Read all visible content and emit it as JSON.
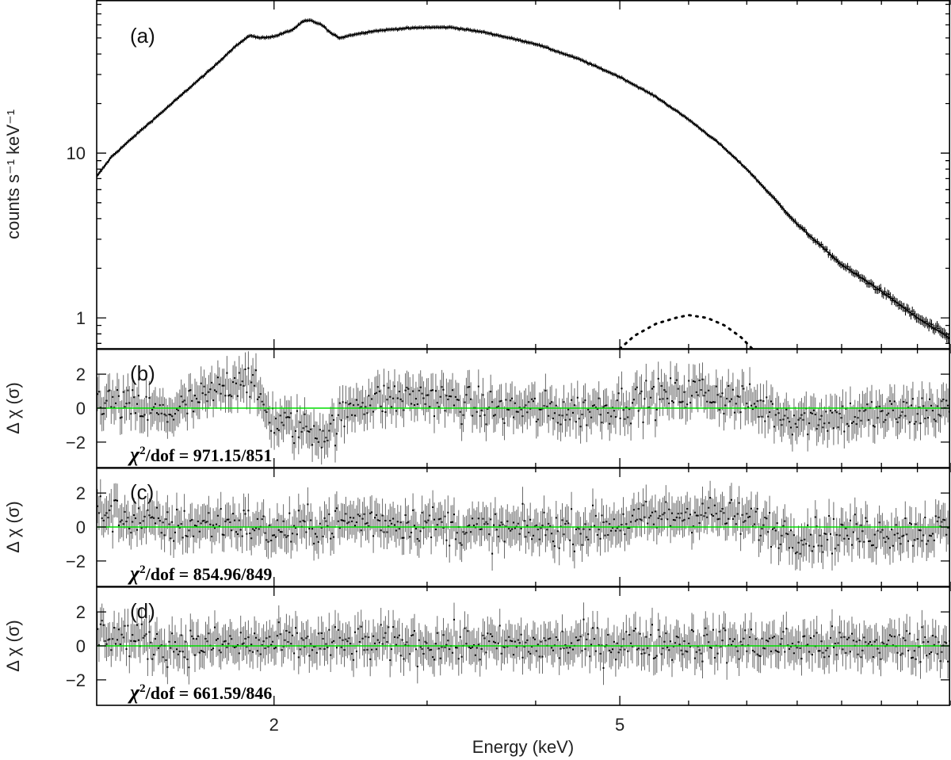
{
  "chart_data": {
    "type": "scatter",
    "x_axis": {
      "label": "Energy (keV)",
      "scale": "log",
      "range": [
        1.25,
        12.0
      ],
      "major_ticks": [
        2,
        5
      ],
      "tick_labels": [
        "2",
        "5"
      ]
    },
    "panels": [
      {
        "id": "a",
        "panel_label": "(a)",
        "ylabel": "counts s⁻¹ keV⁻¹",
        "yscale": "log",
        "ylim": [
          0.65,
          85
        ],
        "major_yticks": [
          1,
          10
        ],
        "ytick_labels": [
          "1",
          "10"
        ],
        "series": [
          {
            "kind": "spectrum",
            "marker": "crosses",
            "color": "#000000",
            "points": [
              [
                1.25,
                7.2
              ],
              [
                1.3,
                9.5
              ],
              [
                1.4,
                13.5
              ],
              [
                1.5,
                18.5
              ],
              [
                1.6,
                25
              ],
              [
                1.7,
                33
              ],
              [
                1.8,
                44
              ],
              [
                1.85,
                49
              ],
              [
                1.88,
                52
              ],
              [
                1.92,
                50
              ],
              [
                2.0,
                51
              ],
              [
                2.1,
                56
              ],
              [
                2.16,
                63
              ],
              [
                2.2,
                64
              ],
              [
                2.27,
                60
              ],
              [
                2.33,
                53
              ],
              [
                2.38,
                50
              ],
              [
                2.45,
                52
              ],
              [
                2.6,
                55
              ],
              [
                2.8,
                57
              ],
              [
                3.0,
                58
              ],
              [
                3.2,
                58
              ],
              [
                3.5,
                54
              ],
              [
                4.0,
                46
              ],
              [
                4.5,
                37
              ],
              [
                5.0,
                29
              ],
              [
                5.5,
                22
              ],
              [
                6.0,
                16
              ],
              [
                6.5,
                11.5
              ],
              [
                7.0,
                8
              ],
              [
                7.5,
                5.4
              ],
              [
                8.0,
                3.7
              ],
              [
                9.0,
                2.1
              ],
              [
                10.0,
                1.45
              ],
              [
                11.0,
                1.0
              ],
              [
                12.0,
                0.75
              ]
            ]
          },
          {
            "kind": "model-component",
            "style": "dotted",
            "color": "#000000",
            "points": [
              [
                5.0,
                0.65
              ],
              [
                5.2,
                0.78
              ],
              [
                5.5,
                0.92
              ],
              [
                5.8,
                1.0
              ],
              [
                6.0,
                1.04
              ],
              [
                6.3,
                1.0
              ],
              [
                6.6,
                0.9
              ],
              [
                6.9,
                0.76
              ],
              [
                7.1,
                0.65
              ]
            ]
          }
        ]
      },
      {
        "id": "b",
        "panel_label": "(b)",
        "ylabel": "Δ χ (σ)",
        "ylim": [
          -3.5,
          3.5
        ],
        "major_yticks": [
          -2,
          0,
          2
        ],
        "ytick_labels": [
          "−2",
          "0",
          "2"
        ],
        "zero_line_color": "#00dd00",
        "stat_prefix": "χ",
        "stat_sup": "2",
        "stat_text": "/dof = 971.15/851",
        "residual_trend": [
          [
            1.25,
            0.5
          ],
          [
            1.5,
            -0.4
          ],
          [
            1.7,
            0.8
          ],
          [
            1.85,
            2.0
          ],
          [
            2.0,
            -0.8
          ],
          [
            2.3,
            -1.5
          ],
          [
            2.5,
            0.4
          ],
          [
            3.0,
            0.7
          ],
          [
            3.5,
            0.0
          ],
          [
            4.5,
            -0.2
          ],
          [
            5.5,
            0.6
          ],
          [
            6.2,
            1.0
          ],
          [
            7.0,
            0.3
          ],
          [
            8.0,
            -0.6
          ],
          [
            10.0,
            -0.4
          ],
          [
            12.0,
            0.0
          ]
        ]
      },
      {
        "id": "c",
        "panel_label": "(c)",
        "ylabel": "Δ χ (σ)",
        "ylim": [
          -3.5,
          3.5
        ],
        "major_yticks": [
          -2,
          0,
          2
        ],
        "ytick_labels": [
          "−2",
          "0",
          "2"
        ],
        "zero_line_color": "#00dd00",
        "stat_prefix": "χ",
        "stat_sup": "2",
        "stat_text": "/dof = 854.96/849",
        "residual_trend": [
          [
            1.25,
            1.0
          ],
          [
            1.5,
            0.0
          ],
          [
            1.8,
            0.3
          ],
          [
            2.0,
            -0.3
          ],
          [
            2.5,
            0.4
          ],
          [
            3.0,
            0.2
          ],
          [
            3.5,
            -0.2
          ],
          [
            4.5,
            -0.1
          ],
          [
            5.5,
            0.5
          ],
          [
            6.2,
            0.9
          ],
          [
            7.0,
            0.4
          ],
          [
            8.0,
            -0.5
          ],
          [
            10.0,
            -0.3
          ],
          [
            12.0,
            -0.1
          ]
        ]
      },
      {
        "id": "d",
        "panel_label": "(d)",
        "ylabel": "Δ χ (σ)",
        "ylim": [
          -3.5,
          3.5
        ],
        "major_yticks": [
          -2,
          0,
          2
        ],
        "ytick_labels": [
          "−2",
          "0",
          "2"
        ],
        "zero_line_color": "#00dd00",
        "stat_prefix": "χ",
        "stat_sup": "2",
        "stat_text": "/dof = 661.59/846",
        "residual_trend": [
          [
            1.25,
            0.8
          ],
          [
            1.5,
            0.0
          ],
          [
            2.0,
            0.1
          ],
          [
            3.0,
            0.1
          ],
          [
            4.0,
            0.0
          ],
          [
            5.5,
            0.2
          ],
          [
            7.0,
            0.1
          ],
          [
            9.0,
            0.0
          ],
          [
            12.0,
            0.1
          ]
        ]
      }
    ]
  }
}
